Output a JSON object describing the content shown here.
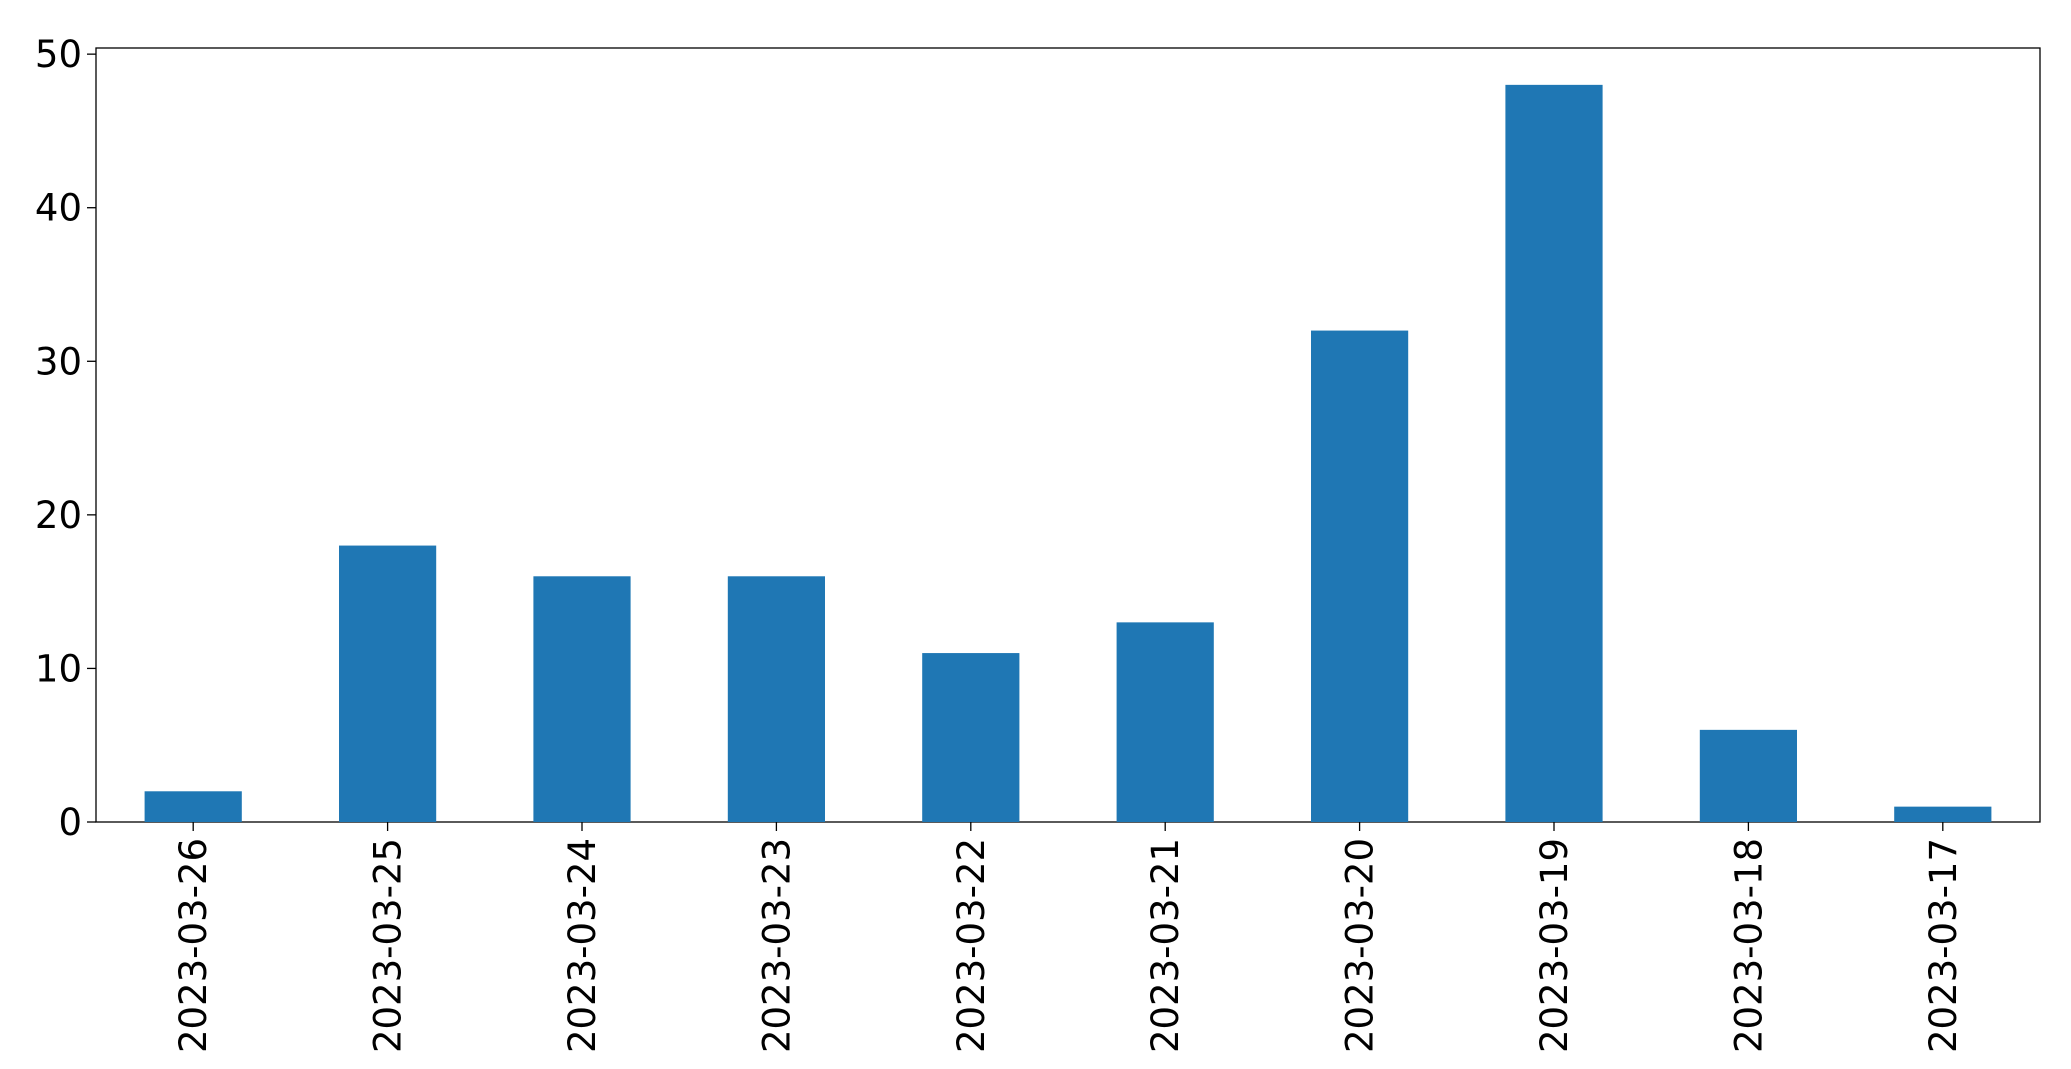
{
  "chart_data": {
    "type": "bar",
    "categories": [
      "2023-03-26",
      "2023-03-25",
      "2023-03-24",
      "2023-03-23",
      "2023-03-22",
      "2023-03-21",
      "2023-03-20",
      "2023-03-19",
      "2023-03-18",
      "2023-03-17"
    ],
    "values": [
      2,
      18,
      16,
      16,
      11,
      13,
      32,
      48,
      6,
      1
    ],
    "color": "#1f77b4",
    "ylim": [
      0,
      50.4
    ],
    "yticks": [
      0,
      10,
      20,
      30,
      40,
      50
    ],
    "grid": false
  }
}
